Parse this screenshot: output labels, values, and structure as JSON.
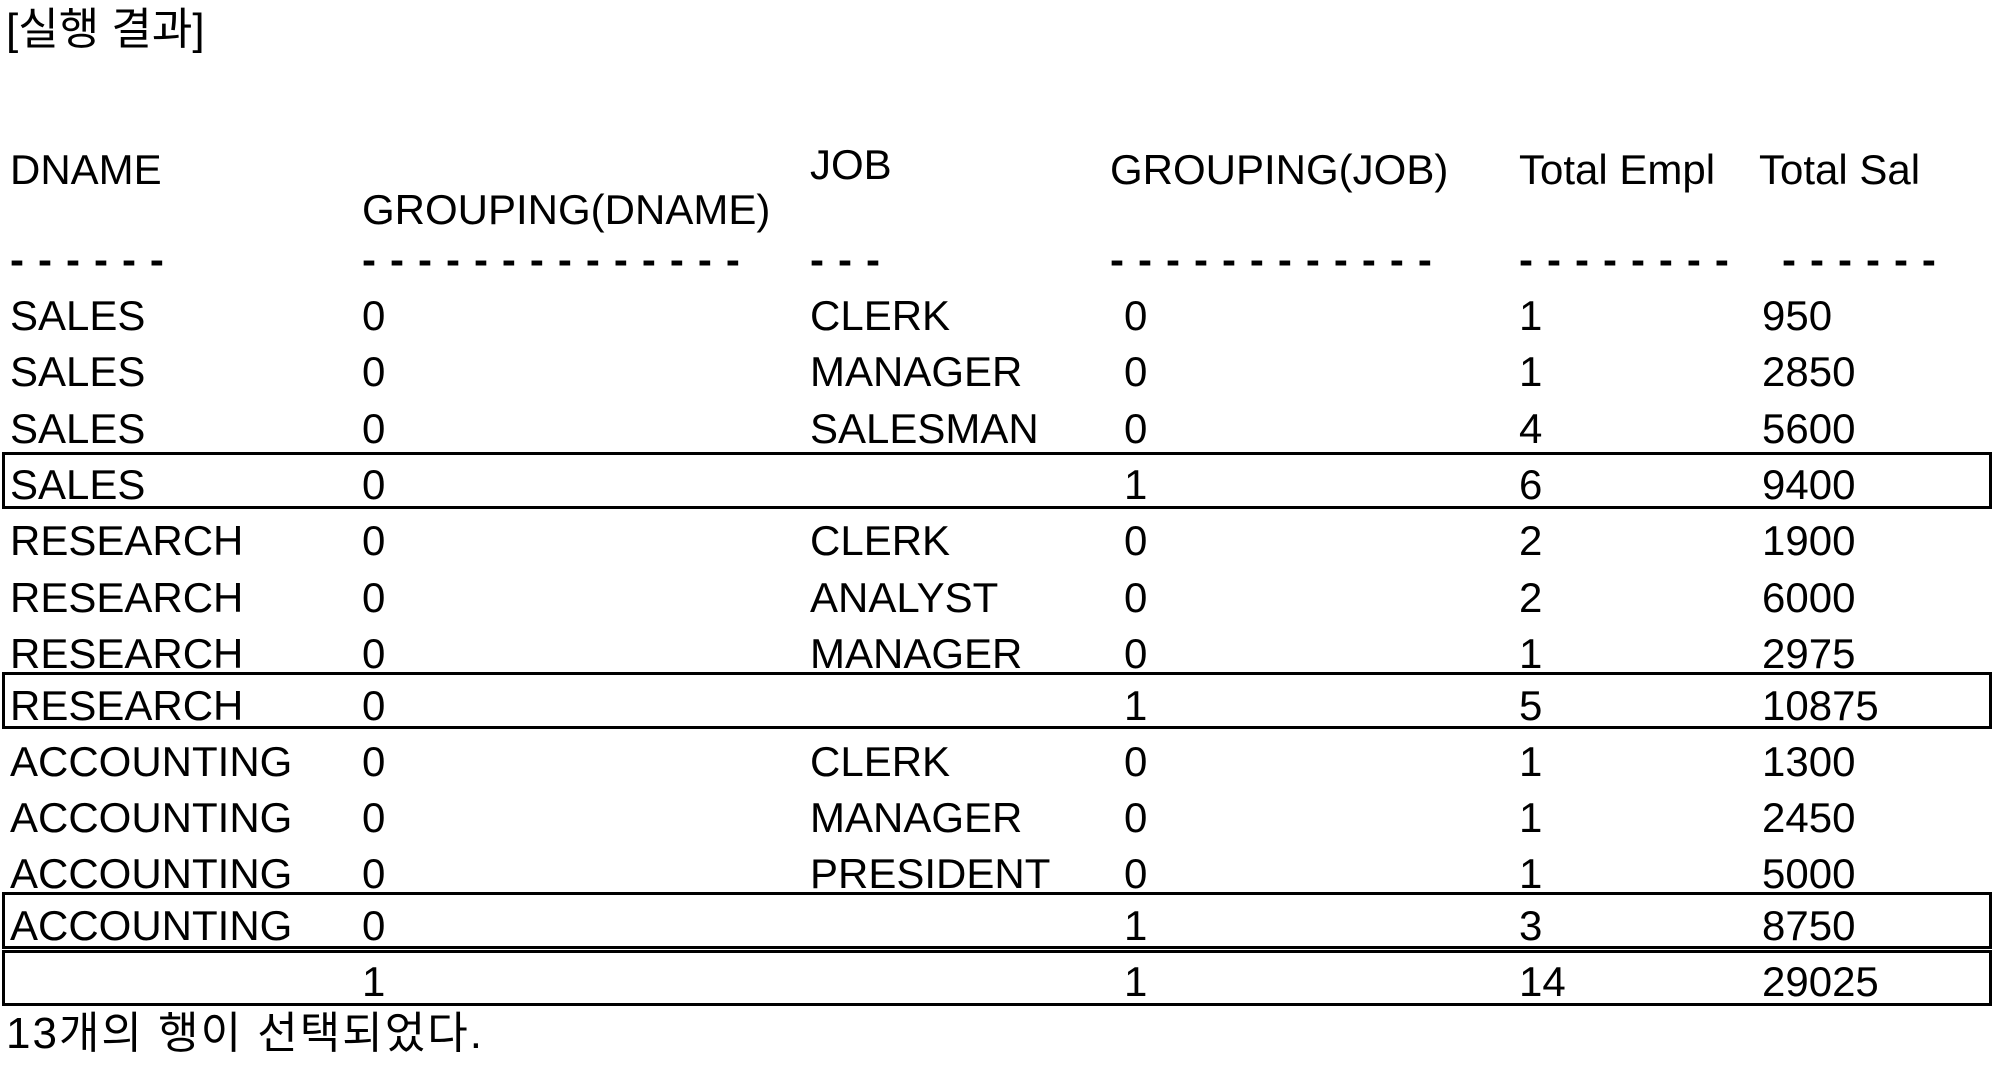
{
  "title": "[실행 결과]",
  "footer": "13개의 행이 선택되었다.",
  "colors": {
    "text": "#000000",
    "background": "#ffffff",
    "box_border": "#000000"
  },
  "table": {
    "headers": {
      "dname": "DNAME",
      "grouping_dname": "GROUPING(DNAME)",
      "job": "JOB",
      "grouping_job": "GROUPING(JOB)",
      "total_empl": "Total Empl",
      "total_sal": "Total Sal"
    },
    "dashes": {
      "dname": "------",
      "grouping_dname": "--------------",
      "job": "---",
      "grouping_job": "------------",
      "total_empl": "--------",
      "total_sal": "------"
    },
    "rows": [
      {
        "dname": "SALES",
        "grouping_dname": "0",
        "job": "CLERK",
        "grouping_job": "0",
        "total_empl": "1",
        "total_sal": "950",
        "boxed": false
      },
      {
        "dname": "SALES",
        "grouping_dname": "0",
        "job": "MANAGER",
        "grouping_job": "0",
        "total_empl": "1",
        "total_sal": "2850",
        "boxed": false
      },
      {
        "dname": "SALES",
        "grouping_dname": "0",
        "job": "SALESMAN",
        "grouping_job": "0",
        "total_empl": "4",
        "total_sal": "5600",
        "boxed": false
      },
      {
        "dname": "SALES",
        "grouping_dname": "0",
        "job": "",
        "grouping_job": "1",
        "total_empl": "6",
        "total_sal": "9400",
        "boxed": true
      },
      {
        "dname": "RESEARCH",
        "grouping_dname": "0",
        "job": "CLERK",
        "grouping_job": "0",
        "total_empl": "2",
        "total_sal": "1900",
        "boxed": false
      },
      {
        "dname": "RESEARCH",
        "grouping_dname": "0",
        "job": "ANALYST",
        "grouping_job": "0",
        "total_empl": "2",
        "total_sal": "6000",
        "boxed": false
      },
      {
        "dname": "RESEARCH",
        "grouping_dname": "0",
        "job": "MANAGER",
        "grouping_job": "0",
        "total_empl": "1",
        "total_sal": "2975",
        "boxed": false
      },
      {
        "dname": "RESEARCH",
        "grouping_dname": "0",
        "job": "",
        "grouping_job": "1",
        "total_empl": "5",
        "total_sal": "10875",
        "boxed": true
      },
      {
        "dname": "ACCOUNTING",
        "grouping_dname": "0",
        "job": "CLERK",
        "grouping_job": "0",
        "total_empl": "1",
        "total_sal": "1300",
        "boxed": false
      },
      {
        "dname": "ACCOUNTING",
        "grouping_dname": "0",
        "job": "MANAGER",
        "grouping_job": "0",
        "total_empl": "1",
        "total_sal": "2450",
        "boxed": false
      },
      {
        "dname": "ACCOUNTING",
        "grouping_dname": "0",
        "job": "PRESIDENT",
        "grouping_job": "0",
        "total_empl": "1",
        "total_sal": "5000",
        "boxed": false
      },
      {
        "dname": "ACCOUNTING",
        "grouping_dname": "0",
        "job": "",
        "grouping_job": "1",
        "total_empl": "3",
        "total_sal": "8750",
        "boxed": true
      },
      {
        "dname": "",
        "grouping_dname": "1",
        "job": "",
        "grouping_job": "1",
        "total_empl": "14",
        "total_sal": "29025",
        "boxed": true
      }
    ]
  }
}
